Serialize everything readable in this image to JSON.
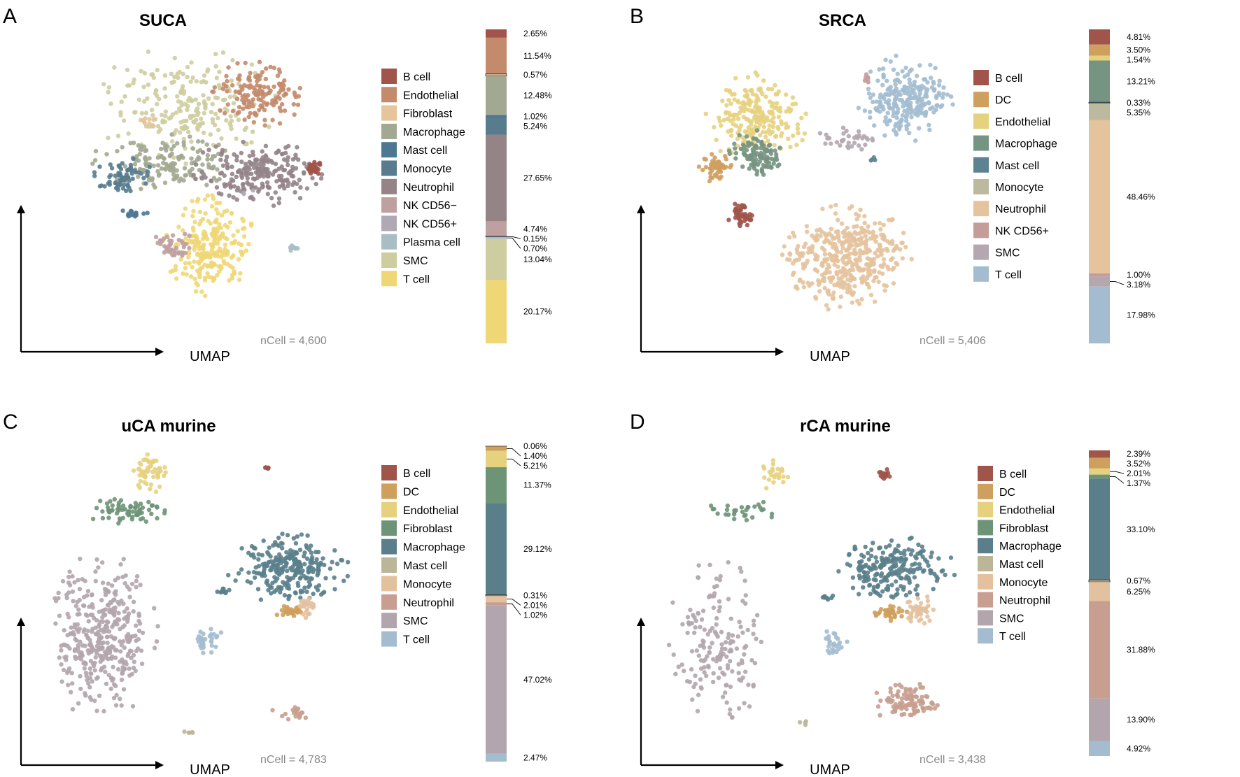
{
  "figure": "Four-panel UMAP single-cell figure with composition stacked bars",
  "axis_label": "UMAP",
  "chart_data": [
    {
      "type": "scatter+stacked_bar",
      "letter": "A",
      "title": "SUCA",
      "ncell": "nCell = 4,600",
      "categories": [
        "B cell",
        "Endothelial",
        "Fibroblast",
        "Macrophage",
        "Mast cell",
        "Monocyte",
        "Neutrophil",
        "NK CD56−",
        "NK CD56+",
        "Plasma cell",
        "SMC",
        "T cell"
      ],
      "colors": [
        "#A0544A",
        "#C38B6C",
        "#E6C49C",
        "#A3A891",
        "#4E7891",
        "#587C8E",
        "#948488",
        "#BFA0A0",
        "#B0A9B5",
        "#A9BDC5",
        "#CECDA0",
        "#EFD775"
      ],
      "percents": [
        2.65,
        11.54,
        0.57,
        12.48,
        1.02,
        5.24,
        27.65,
        4.74,
        0.15,
        0.7,
        13.04,
        20.17
      ],
      "percent_labels": [
        "2.65%",
        "11.54%",
        "0.57%",
        "12.48%",
        "1.02%",
        "5.24%",
        "27.65%",
        "4.74%",
        "0.15%",
        "0.70%",
        "13.04%",
        "20.17%"
      ],
      "clusters": [
        {
          "cat": "SMC",
          "cx": 0.52,
          "cy": 0.26,
          "rx": 0.28,
          "ry": 0.22,
          "n": 220
        },
        {
          "cat": "Fibroblast",
          "cx": 0.4,
          "cy": 0.32,
          "rx": 0.06,
          "ry": 0.02,
          "n": 10
        },
        {
          "cat": "Endothelial",
          "cx": 0.75,
          "cy": 0.21,
          "rx": 0.16,
          "ry": 0.12,
          "n": 150
        },
        {
          "cat": "Macrophage",
          "cx": 0.46,
          "cy": 0.48,
          "rx": 0.24,
          "ry": 0.1,
          "n": 160
        },
        {
          "cat": "Monocyte",
          "cx": 0.31,
          "cy": 0.53,
          "rx": 0.1,
          "ry": 0.08,
          "n": 70
        },
        {
          "cat": "Mast cell",
          "cx": 0.34,
          "cy": 0.68,
          "rx": 0.05,
          "ry": 0.02,
          "n": 14
        },
        {
          "cat": "Neutrophil",
          "cx": 0.74,
          "cy": 0.52,
          "rx": 0.2,
          "ry": 0.12,
          "n": 220
        },
        {
          "cat": "B cell",
          "cx": 0.93,
          "cy": 0.5,
          "rx": 0.03,
          "ry": 0.03,
          "n": 30
        },
        {
          "cat": "T cell",
          "cx": 0.59,
          "cy": 0.8,
          "rx": 0.14,
          "ry": 0.18,
          "n": 240
        },
        {
          "cat": "NK CD56−",
          "cx": 0.47,
          "cy": 0.8,
          "rx": 0.06,
          "ry": 0.06,
          "n": 40
        },
        {
          "cat": "Plasma cell",
          "cx": 0.86,
          "cy": 0.81,
          "rx": 0.02,
          "ry": 0.02,
          "n": 8
        },
        {
          "cat": "NK CD56+",
          "cx": 0.71,
          "cy": 0.59,
          "rx": 0.02,
          "ry": 0.02,
          "n": 3
        }
      ]
    },
    {
      "type": "scatter+stacked_bar",
      "letter": "B",
      "title": "SRCA",
      "ncell": "nCell = 5,406",
      "categories": [
        "B cell",
        "DC",
        "Endothelial",
        "Macrophage",
        "Mast cell",
        "Monocyte",
        "Neutrophil",
        "NK CD56+",
        "SMC",
        "T cell"
      ],
      "colors": [
        "#A0544A",
        "#CF9F5E",
        "#E6D17E",
        "#759481",
        "#5D8390",
        "#BDB99E",
        "#E4C39D",
        "#C49C98",
        "#B5A7AF",
        "#A3BCD0"
      ],
      "percents": [
        4.81,
        3.5,
        1.54,
        13.21,
        0.33,
        5.35,
        48.46,
        1.0,
        3.18,
        17.98
      ],
      "percent_labels": [
        "4.81%",
        "3.50%",
        "1.54%",
        "13.21%",
        "0.33%",
        "5.35%",
        "48.46%",
        "1.00%",
        "3.18%",
        "17.98%"
      ],
      "clusters": [
        {
          "cat": "Endothelial",
          "cx": 0.35,
          "cy": 0.27,
          "rx": 0.16,
          "ry": 0.15,
          "n": 220
        },
        {
          "cat": "Macrophage",
          "cx": 0.35,
          "cy": 0.4,
          "rx": 0.08,
          "ry": 0.08,
          "n": 110
        },
        {
          "cat": "DC",
          "cx": 0.22,
          "cy": 0.45,
          "rx": 0.05,
          "ry": 0.05,
          "n": 50
        },
        {
          "cat": "SMC",
          "cx": 0.65,
          "cy": 0.35,
          "rx": 0.1,
          "ry": 0.04,
          "n": 35
        },
        {
          "cat": "T cell",
          "cx": 0.84,
          "cy": 0.21,
          "rx": 0.15,
          "ry": 0.15,
          "n": 240
        },
        {
          "cat": "NK CD56+",
          "cx": 0.71,
          "cy": 0.13,
          "rx": 0.02,
          "ry": 0.02,
          "n": 6
        },
        {
          "cat": "Mast cell",
          "cx": 0.73,
          "cy": 0.42,
          "rx": 0.03,
          "ry": 0.02,
          "n": 4
        },
        {
          "cat": "B cell",
          "cx": 0.3,
          "cy": 0.62,
          "rx": 0.04,
          "ry": 0.05,
          "n": 45
        },
        {
          "cat": "Neutrophil",
          "cx": 0.64,
          "cy": 0.77,
          "rx": 0.2,
          "ry": 0.18,
          "n": 420
        }
      ]
    },
    {
      "type": "scatter+stacked_bar",
      "letter": "C",
      "title": "uCA murine",
      "ncell": "nCell = 4,783",
      "categories": [
        "B cell",
        "DC",
        "Endothelial",
        "Fibroblast",
        "Macrophage",
        "Mast cell",
        "Monocyte",
        "Neutrophil",
        "SMC",
        "T cell"
      ],
      "colors": [
        "#A0544A",
        "#CF9F5E",
        "#E6D17E",
        "#6E9478",
        "#5A7F8B",
        "#BCB698",
        "#E3C19E",
        "#C79E8F",
        "#B3A5AD",
        "#A3BCD0"
      ],
      "percents": [
        0.06,
        1.4,
        5.21,
        11.37,
        29.12,
        0.31,
        2.01,
        1.02,
        47.02,
        2.47
      ],
      "percent_labels": [
        "0.06%",
        "1.40%",
        "5.21%",
        "11.37%",
        "29.12%",
        "0.31%",
        "2.01%",
        "1.02%",
        "47.02%",
        "2.47%"
      ],
      "clusters": [
        {
          "cat": "Endothelial",
          "cx": 0.38,
          "cy": 0.12,
          "rx": 0.06,
          "ry": 0.06,
          "n": 55
        },
        {
          "cat": "Fibroblast",
          "cx": 0.31,
          "cy": 0.24,
          "rx": 0.12,
          "ry": 0.04,
          "n": 70
        },
        {
          "cat": "B cell",
          "cx": 0.74,
          "cy": 0.11,
          "rx": 0.01,
          "ry": 0.01,
          "n": 5
        },
        {
          "cat": "SMC",
          "cx": 0.23,
          "cy": 0.62,
          "rx": 0.16,
          "ry": 0.26,
          "n": 380
        },
        {
          "cat": "Macrophage",
          "cx": 0.81,
          "cy": 0.42,
          "rx": 0.18,
          "ry": 0.1,
          "n": 260
        },
        {
          "cat": "Macrophage",
          "cx": 0.61,
          "cy": 0.49,
          "rx": 0.03,
          "ry": 0.01,
          "n": 10
        },
        {
          "cat": "DC",
          "cx": 0.81,
          "cy": 0.55,
          "rx": 0.05,
          "ry": 0.02,
          "n": 25
        },
        {
          "cat": "Monocyte",
          "cx": 0.87,
          "cy": 0.54,
          "rx": 0.03,
          "ry": 0.04,
          "n": 25
        },
        {
          "cat": "T cell",
          "cx": 0.56,
          "cy": 0.64,
          "rx": 0.05,
          "ry": 0.04,
          "n": 30
        },
        {
          "cat": "Neutrophil",
          "cx": 0.82,
          "cy": 0.87,
          "rx": 0.07,
          "ry": 0.04,
          "n": 18
        },
        {
          "cat": "Mast cell",
          "cx": 0.5,
          "cy": 0.93,
          "rx": 0.02,
          "ry": 0.01,
          "n": 5
        }
      ]
    },
    {
      "type": "scatter+stacked_bar",
      "letter": "D",
      "title": "rCA murine",
      "ncell": "nCell = 3,438",
      "categories": [
        "B cell",
        "DC",
        "Endothelial",
        "Fibroblast",
        "Macrophage",
        "Mast cell",
        "Monocyte",
        "Neutrophil",
        "SMC",
        "T cell"
      ],
      "colors": [
        "#A0544A",
        "#CF9F5E",
        "#E6D17E",
        "#6E9478",
        "#5A7F8B",
        "#BCB698",
        "#E3C19E",
        "#C79E8F",
        "#B3A5AD",
        "#A3BCD0"
      ],
      "percents": [
        2.39,
        3.52,
        2.01,
        1.37,
        33.1,
        0.67,
        6.25,
        31.88,
        13.9,
        4.92
      ],
      "percent_labels": [
        "2.39%",
        "3.52%",
        "2.01%",
        "1.37%",
        "33.10%",
        "0.67%",
        "6.25%",
        "31.88%",
        "13.90%",
        "4.92%"
      ],
      "clusters": [
        {
          "cat": "Endothelial",
          "cx": 0.4,
          "cy": 0.1,
          "rx": 0.05,
          "ry": 0.06,
          "n": 25
        },
        {
          "cat": "B cell",
          "cx": 0.75,
          "cy": 0.11,
          "rx": 0.02,
          "ry": 0.02,
          "n": 18
        },
        {
          "cat": "Fibroblast",
          "cx": 0.3,
          "cy": 0.23,
          "rx": 0.11,
          "ry": 0.04,
          "n": 30
        },
        {
          "cat": "SMC",
          "cx": 0.22,
          "cy": 0.65,
          "rx": 0.15,
          "ry": 0.25,
          "n": 170
        },
        {
          "cat": "Macrophage",
          "cx": 0.78,
          "cy": 0.42,
          "rx": 0.18,
          "ry": 0.1,
          "n": 220
        },
        {
          "cat": "Macrophage",
          "cx": 0.57,
          "cy": 0.51,
          "rx": 0.02,
          "ry": 0.01,
          "n": 8
        },
        {
          "cat": "DC",
          "cx": 0.77,
          "cy": 0.56,
          "rx": 0.06,
          "ry": 0.03,
          "n": 35
        },
        {
          "cat": "Monocyte",
          "cx": 0.86,
          "cy": 0.55,
          "rx": 0.05,
          "ry": 0.05,
          "n": 40
        },
        {
          "cat": "T cell",
          "cx": 0.59,
          "cy": 0.66,
          "rx": 0.04,
          "ry": 0.05,
          "n": 25
        },
        {
          "cat": "Neutrophil",
          "cx": 0.82,
          "cy": 0.85,
          "rx": 0.1,
          "ry": 0.06,
          "n": 100
        },
        {
          "cat": "Mast cell",
          "cx": 0.49,
          "cy": 0.92,
          "rx": 0.02,
          "ry": 0.01,
          "n": 4
        }
      ]
    }
  ]
}
